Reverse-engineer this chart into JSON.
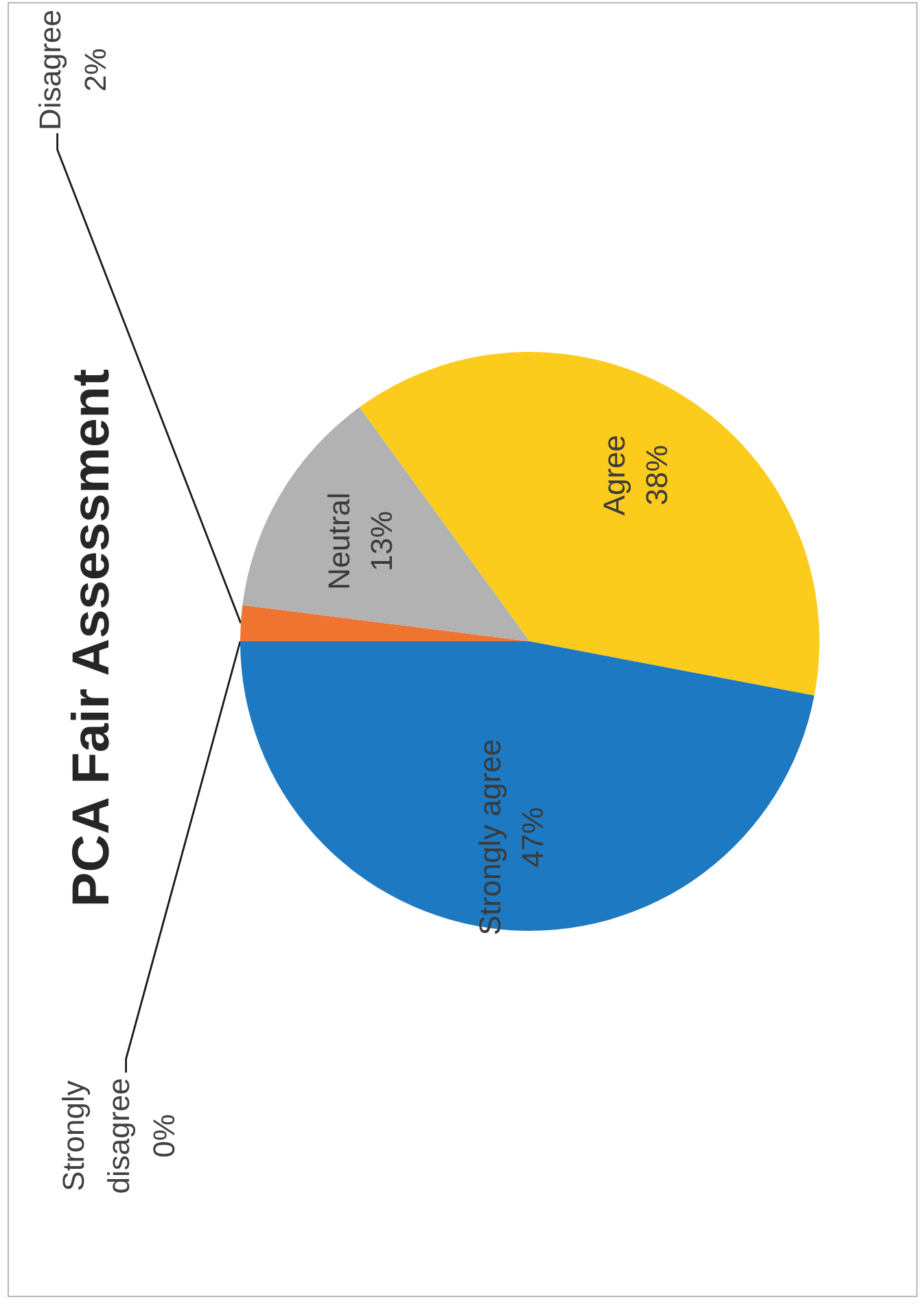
{
  "chart_data": {
    "type": "pie",
    "title": "PCA Fair Assessment",
    "categories": [
      "Strongly disagree",
      "Disagree",
      "Neutral",
      "Agree",
      "Strongly agree"
    ],
    "values": [
      0,
      2,
      13,
      38,
      47
    ],
    "value_labels": [
      "0%",
      "2%",
      "13%",
      "38%",
      "47%"
    ],
    "colors": [
      null,
      "#ee7430",
      "#b2b2b2",
      "#fbcc1c",
      "#1d79c2"
    ]
  }
}
